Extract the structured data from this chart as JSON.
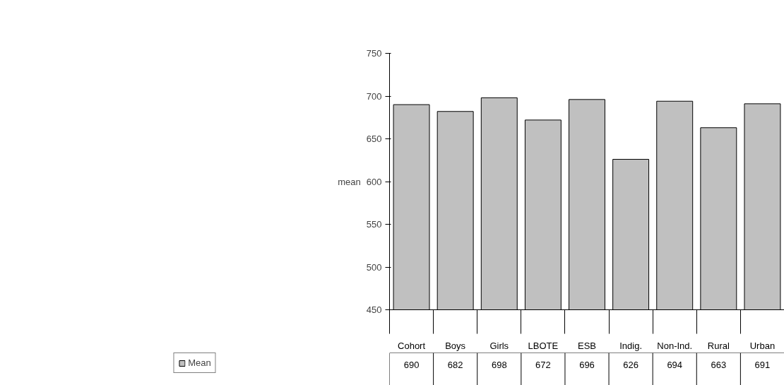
{
  "chart_data": {
    "type": "bar",
    "categories": [
      "Cohort",
      "Boys",
      "Girls",
      "LBOTE",
      "ESB",
      "Indig.",
      "Non-Ind.",
      "Rural",
      "Urban"
    ],
    "series": [
      {
        "name": "Mean",
        "color": "#c0c0c0",
        "values": [
          690,
          682,
          698,
          672,
          696,
          626,
          694,
          663,
          691
        ]
      }
    ],
    "ylabel": "mean",
    "ylim": [
      450,
      750
    ],
    "yticks": [
      450,
      500,
      550,
      600,
      650,
      700,
      750
    ],
    "data_labels": true,
    "grid": false,
    "legend": "bottom"
  }
}
